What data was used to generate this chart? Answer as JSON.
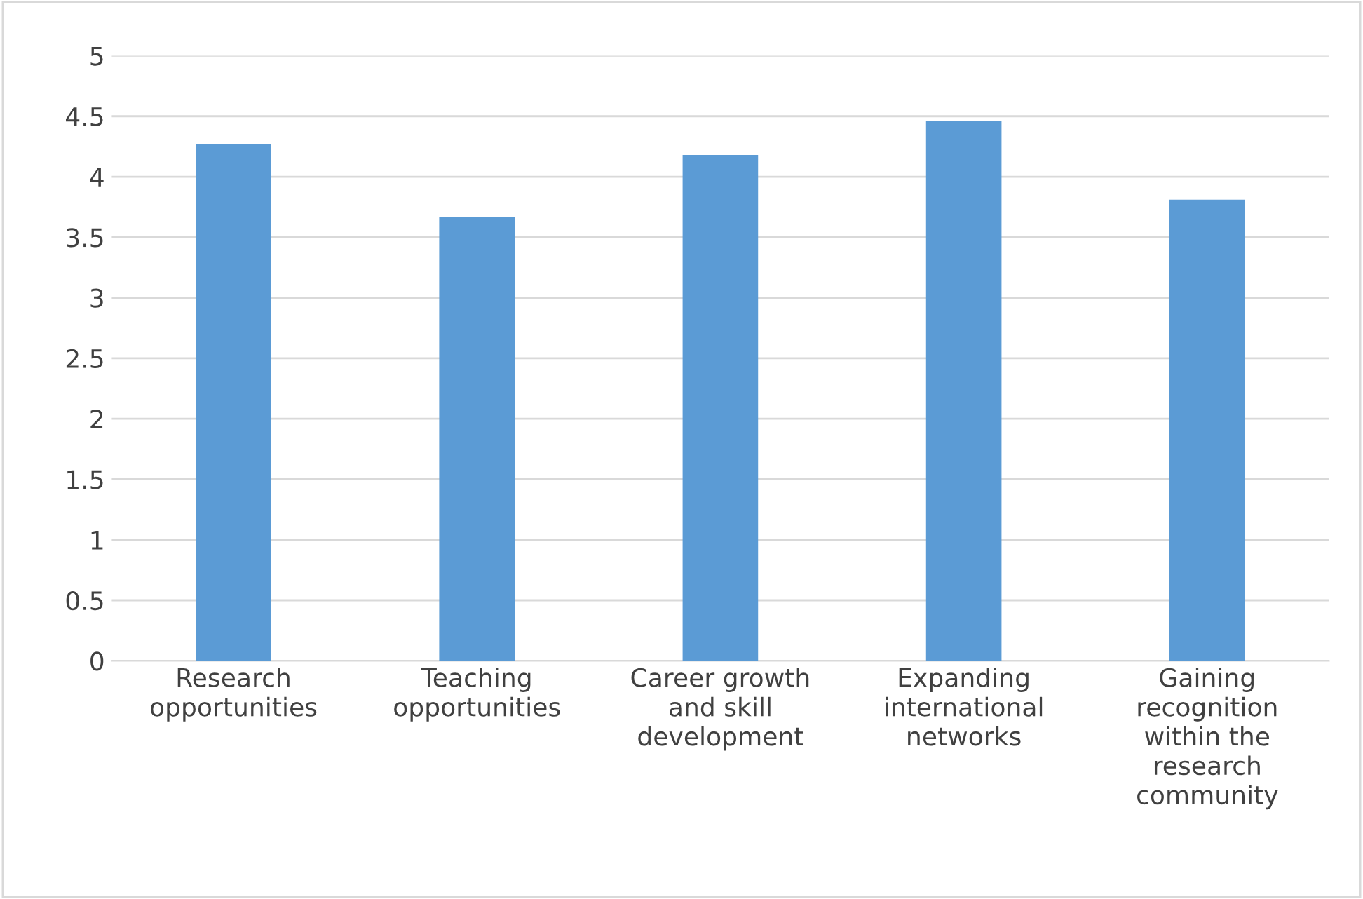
{
  "chart_data": {
    "type": "bar",
    "categories": [
      "Research\nopportunities",
      "Teaching\nopportunities",
      "Career growth\nand skill\ndevelopment",
      "Expanding\ninternational\nnetworks",
      "Gaining\nrecognition\nwithin the\nresearch\ncommunity"
    ],
    "values": [
      4.27,
      3.67,
      4.18,
      4.46,
      3.81
    ],
    "color": "#5b9bd5",
    "ylim": [
      0,
      5
    ],
    "yticks": [
      0,
      0.5,
      1,
      1.5,
      2,
      2.5,
      3,
      3.5,
      4,
      4.5,
      5
    ],
    "grid": "y",
    "legend": false
  }
}
